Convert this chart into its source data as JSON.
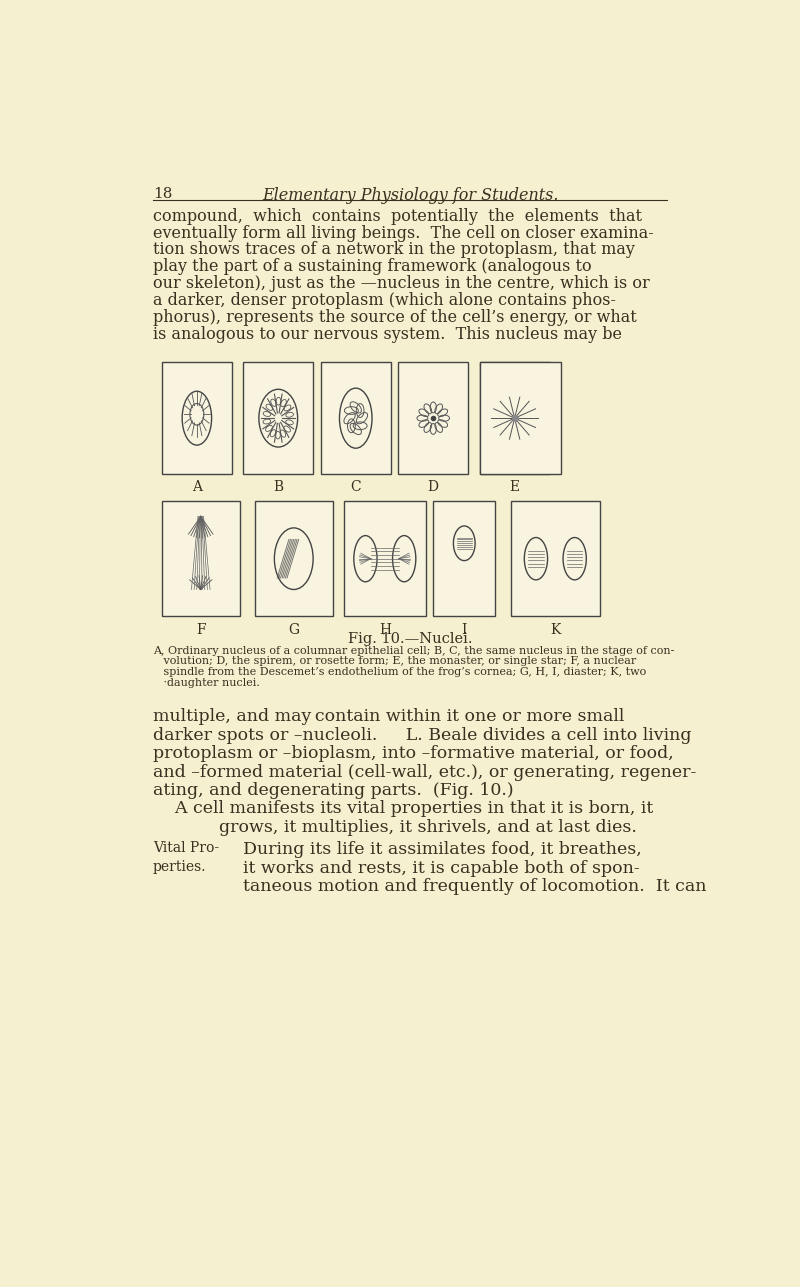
{
  "bg_color": "#f5f0d0",
  "page_number": "18",
  "header": "Elementary Physiology for Students.",
  "body_paragraphs": [
    "compound,  which  contains  potentially  the  elements  that eventually form all living beings.  The cell on closer examina- tion shows traces of a network in the protoplasm, that may play the part of a sustaining framework (analogous to our skeleton), just as the —nucleus in the centre, which is or a darker, denser protoplasm (which alone contains phos- phorus), represents the source of the cell’s energy, or what is analogous to our nervous system.  This nucleus may be"
  ],
  "fig_caption": "Fig. 10.—Nuclei.",
  "fig_subcaption": "A, Ordinary nucleus of a columnar epithelial cell; B, C, the same nucleus in the stage of con-\n    volution; D, the spirem, or rosette form; E, the monaster, or single star; F, a nuclear\n    spindle from the Descemet’s endothelium of the frog’s cornea; G, H, I, diaster; K, two\n    ·daughter nuclei.",
  "bottom_paragraphs": [
    "multiple, and may contain within it one or more small darker spots or –nucleoli.  L. Beale divides a cell into living protoplasm or –bioplasm, into –formative material, or food, and –formed material (cell-wall, etc.), or generating, regener- ating, and degenerating parts.  (Fig. 10.)",
    "    A cell manifests its vital properties in that it is born, it\n            grows, it multiplies, it shrivels, and at last dies.",
    "During its life it assimilates food, it breathes,\n    it works and rests, it is capable both of spon-\ntaneous motion and frequently of locomotion.  It can"
  ],
  "vital_pro_label": "Vital Pro-\nperties.",
  "text_color": "#3a3020",
  "header_color": "#3a3020",
  "label_color": "#5a4a30"
}
